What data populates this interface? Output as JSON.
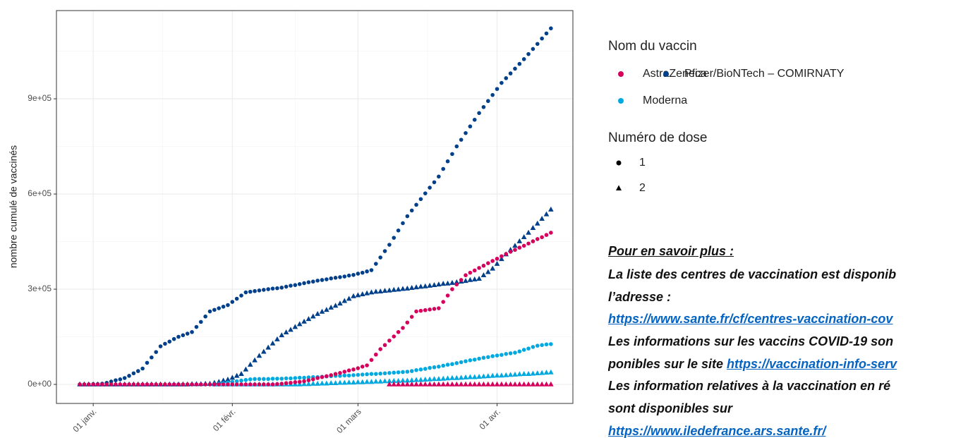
{
  "chart_data": {
    "type": "scatter",
    "y_label": "nombre cumulé de vaccinés",
    "ylim": [
      -60000,
      1178000
    ],
    "yticks": [
      {
        "value": 0,
        "label": "0e+00"
      },
      {
        "value": 300000,
        "label": "3e+05"
      },
      {
        "value": 600000,
        "label": "6e+05"
      },
      {
        "value": 900000,
        "label": "9e+05"
      }
    ],
    "grid": true,
    "categories": [
      "29 déc.",
      "30 déc.",
      "31 déc.",
      "01 janv.",
      "02 janv.",
      "03 janv.",
      "04 janv.",
      "05 janv.",
      "06 janv.",
      "07 janv.",
      "08 janv.",
      "09 janv.",
      "10 janv.",
      "11 janv.",
      "12 janv.",
      "13 janv.",
      "14 janv.",
      "15 janv.",
      "16 janv.",
      "17 janv.",
      "18 janv.",
      "19 janv.",
      "20 janv.",
      "21 janv.",
      "22 janv.",
      "23 janv.",
      "24 janv.",
      "25 janv.",
      "26 janv.",
      "27 janv.",
      "28 janv.",
      "29 janv.",
      "30 janv.",
      "31 janv.",
      "01 févr.",
      "02 févr.",
      "03 févr.",
      "04 févr.",
      "05 févr.",
      "06 févr.",
      "07 févr.",
      "08 févr.",
      "09 févr.",
      "10 févr.",
      "11 févr.",
      "12 févr.",
      "13 févr.",
      "14 févr.",
      "15 févr.",
      "16 févr.",
      "17 févr.",
      "18 févr.",
      "19 févr.",
      "20 févr.",
      "21 févr.",
      "22 févr.",
      "23 févr.",
      "24 févr.",
      "25 févr.",
      "26 févr.",
      "27 févr.",
      "28 févr.",
      "01 mars",
      "02 mars",
      "03 mars",
      "04 mars",
      "05 mars",
      "06 mars",
      "07 mars",
      "08 mars",
      "09 mars",
      "10 mars",
      "11 mars",
      "12 mars",
      "13 mars",
      "14 mars",
      "15 mars",
      "16 mars",
      "17 mars",
      "18 mars",
      "19 mars",
      "20 mars",
      "21 mars",
      "22 mars",
      "23 mars",
      "24 mars",
      "25 mars",
      "26 mars",
      "27 mars",
      "28 mars",
      "29 mars",
      "30 mars",
      "31 mars",
      "01 avr.",
      "02 avr.",
      "03 avr.",
      "04 avr.",
      "05 avr.",
      "06 avr.",
      "07 avr.",
      "08 avr.",
      "09 avr.",
      "10 avr.",
      "11 avr.",
      "12 avr.",
      "13 avr."
    ],
    "xticks": [
      "01 janv.",
      "01 févr.",
      "01 mars",
      "01 avr."
    ],
    "color_legend": {
      "title": "Nom du vaccin",
      "items": [
        {
          "name": "AstraZeneca",
          "color": "#d6005c"
        },
        {
          "name": "Pfizer/BioNTech – COMIRNATY",
          "color": "#003f8a"
        },
        {
          "name": "Moderna",
          "color": "#00a8e0"
        }
      ]
    },
    "shape_legend": {
      "title": "Numéro de dose",
      "items": [
        {
          "label": "1",
          "shape": "circle"
        },
        {
          "label": "2",
          "shape": "triangle"
        }
      ]
    },
    "series": [
      {
        "vaccine": "Pfizer/BioNTech – COMIRNATY",
        "dose": "1",
        "values": [
          0,
          0,
          0,
          1000,
          1000,
          2000,
          5000,
          9000,
          13000,
          16000,
          20000,
          27000,
          35000,
          42000,
          50000,
          68000,
          85000,
          102000,
          120000,
          128000,
          135000,
          143000,
          150000,
          155000,
          160000,
          165000,
          181000,
          197000,
          214000,
          230000,
          235000,
          240000,
          245000,
          250000,
          260000,
          270000,
          280000,
          290000,
          292000,
          294000,
          296000,
          298000,
          300000,
          302000,
          303000,
          305000,
          308000,
          311000,
          313000,
          316000,
          319000,
          322000,
          324000,
          327000,
          329000,
          331000,
          334000,
          336000,
          338000,
          340000,
          343000,
          345000,
          349000,
          352000,
          356000,
          360000,
          380000,
          400000,
          420000,
          440000,
          462000,
          485000,
          508000,
          530000,
          548000,
          566000,
          584000,
          602000,
          620000,
          637000,
          655000,
          679000,
          703000,
          726000,
          750000,
          771000,
          792000,
          813000,
          834000,
          855000,
          874000,
          893000,
          912000,
          931000,
          950000,
          965000,
          980000,
          995000,
          1010000,
          1025000,
          1041000,
          1057000,
          1073000,
          1090000,
          1106000,
          1122000
        ]
      },
      {
        "vaccine": "Pfizer/BioNTech – COMIRNATY",
        "dose": "2",
        "values": [
          0,
          0,
          0,
          0,
          0,
          0,
          0,
          0,
          0,
          0,
          0,
          0,
          0,
          0,
          0,
          0,
          0,
          0,
          0,
          0,
          0,
          0,
          0,
          0,
          0,
          1000,
          1000,
          1000,
          2000,
          2000,
          5000,
          8000,
          12000,
          15000,
          21000,
          27000,
          33000,
          47000,
          62000,
          76000,
          90000,
          103000,
          116000,
          129000,
          142000,
          155000,
          164000,
          172000,
          181000,
          190000,
          198000,
          206000,
          214000,
          222000,
          229000,
          235000,
          242000,
          248000,
          255000,
          263000,
          270000,
          278000,
          281000,
          284000,
          287000,
          290000,
          292000,
          293000,
          295000,
          296000,
          298000,
          299000,
          301000,
          302000,
          304000,
          306000,
          308000,
          309000,
          311000,
          313000,
          315000,
          317000,
          318000,
          320000,
          322000,
          324000,
          326000,
          329000,
          331000,
          333000,
          344000,
          354000,
          365000,
          380000,
          395000,
          410000,
          424000,
          437000,
          451000,
          464000,
          478000,
          493000,
          507000,
          522000,
          536000,
          551000
        ]
      },
      {
        "vaccine": "Moderna",
        "dose": "1",
        "values": [
          null,
          null,
          null,
          null,
          null,
          null,
          null,
          null,
          null,
          null,
          null,
          null,
          null,
          null,
          null,
          null,
          null,
          null,
          null,
          null,
          0,
          0,
          0,
          0,
          0,
          0,
          0,
          0,
          0,
          0,
          0,
          2000,
          4000,
          6000,
          8000,
          10000,
          12000,
          14000,
          16000,
          17000,
          17000,
          17000,
          17000,
          18000,
          18000,
          18000,
          19000,
          19000,
          20000,
          21000,
          21000,
          22000,
          23000,
          23000,
          24000,
          25000,
          26000,
          27000,
          27000,
          28000,
          28000,
          29000,
          30000,
          31000,
          32000,
          33000,
          33000,
          34000,
          35000,
          36000,
          37000,
          38000,
          39000,
          40000,
          42000,
          45000,
          47000,
          49000,
          52000,
          54000,
          56000,
          59000,
          62000,
          64000,
          67000,
          70000,
          73000,
          76000,
          78000,
          81000,
          84000,
          86000,
          89000,
          91000,
          93000,
          96000,
          98000,
          100000,
          104000,
          109000,
          113000,
          118000,
          122000,
          124000,
          126000,
          127000
        ]
      },
      {
        "vaccine": "Moderna",
        "dose": "2",
        "values": [
          null,
          null,
          null,
          null,
          null,
          null,
          null,
          null,
          null,
          null,
          null,
          null,
          null,
          null,
          null,
          null,
          null,
          null,
          null,
          null,
          null,
          null,
          null,
          null,
          null,
          null,
          null,
          null,
          null,
          null,
          0,
          0,
          0,
          0,
          0,
          0,
          0,
          0,
          0,
          0,
          0,
          0,
          0,
          0,
          0,
          0,
          0,
          0,
          0,
          0,
          1000,
          1000,
          2000,
          2000,
          3000,
          3000,
          4000,
          4000,
          5000,
          5000,
          6000,
          6000,
          7000,
          7000,
          8000,
          8000,
          9000,
          9000,
          10000,
          10000,
          11000,
          11000,
          12000,
          12000,
          13000,
          14000,
          14000,
          15000,
          16000,
          17000,
          17000,
          18000,
          19000,
          20000,
          20000,
          21000,
          22000,
          23000,
          23000,
          24000,
          25000,
          26000,
          27000,
          28000,
          28000,
          29000,
          30000,
          31000,
          32000,
          33000,
          33000,
          34000,
          35000,
          36000,
          37000,
          38000
        ]
      },
      {
        "vaccine": "AstraZeneca",
        "dose": "1",
        "values": [
          0,
          0,
          0,
          0,
          0,
          0,
          0,
          0,
          0,
          0,
          0,
          0,
          0,
          0,
          0,
          0,
          0,
          0,
          0,
          0,
          0,
          0,
          0,
          0,
          0,
          0,
          0,
          0,
          0,
          0,
          0,
          0,
          0,
          0,
          0,
          0,
          0,
          0,
          0,
          0,
          0,
          0,
          0,
          0,
          1000,
          2000,
          4000,
          5000,
          7000,
          8000,
          10000,
          13000,
          16000,
          20000,
          23000,
          26000,
          29000,
          33000,
          36000,
          40000,
          44000,
          47000,
          51000,
          56000,
          60000,
          77000,
          94000,
          111000,
          124000,
          138000,
          151000,
          165000,
          178000,
          195000,
          213000,
          230000,
          232000,
          234000,
          236000,
          238000,
          240000,
          260000,
          280000,
          300000,
          315000,
          329000,
          344000,
          352000,
          359000,
          367000,
          374000,
          382000,
          389000,
          396000,
          404000,
          411000,
          418000,
          424000,
          431000,
          437000,
          444000,
          451000,
          458000,
          464000,
          471000,
          478000
        ]
      },
      {
        "vaccine": "AstraZeneca",
        "dose": "2",
        "values": [
          null,
          null,
          null,
          null,
          null,
          null,
          null,
          null,
          null,
          null,
          null,
          null,
          null,
          null,
          null,
          null,
          null,
          null,
          null,
          null,
          null,
          null,
          null,
          null,
          null,
          null,
          null,
          null,
          null,
          null,
          null,
          null,
          null,
          null,
          null,
          null,
          null,
          null,
          null,
          null,
          null,
          null,
          null,
          null,
          null,
          null,
          null,
          null,
          null,
          null,
          null,
          null,
          null,
          null,
          null,
          null,
          null,
          null,
          null,
          null,
          null,
          null,
          null,
          null,
          null,
          null,
          null,
          null,
          null,
          0,
          0,
          0,
          0,
          0,
          0,
          0,
          0,
          0,
          0,
          0,
          0,
          0,
          0,
          0,
          0,
          0,
          0,
          0,
          0,
          0,
          0,
          0,
          0,
          0,
          0,
          0,
          0,
          0,
          0,
          0,
          0,
          0,
          0,
          0,
          0,
          0
        ]
      }
    ]
  },
  "info": {
    "title": "Pour en savoir plus :",
    "lines": [
      [
        {
          "text": "La liste des centres de vaccination est disponib"
        }
      ],
      [
        {
          "text": "l’adresse :"
        }
      ],
      [
        {
          "text": "https://www.sante.fr/cf/centres-vaccination-cov",
          "link": true
        }
      ],
      [
        {
          "text": "Les informations sur les vaccins COVID-19 son"
        }
      ],
      [
        {
          "text": "ponibles sur le site "
        },
        {
          "text": "https://vaccination-info-serv",
          "link": true
        }
      ],
      [
        {
          "text": "Les information relatives à la vaccination en ré"
        }
      ],
      [
        {
          "text": "sont disponibles sur"
        }
      ],
      [
        {
          "text": "https://www.iledefrance.ars.sante.fr/",
          "link": true
        }
      ]
    ]
  }
}
